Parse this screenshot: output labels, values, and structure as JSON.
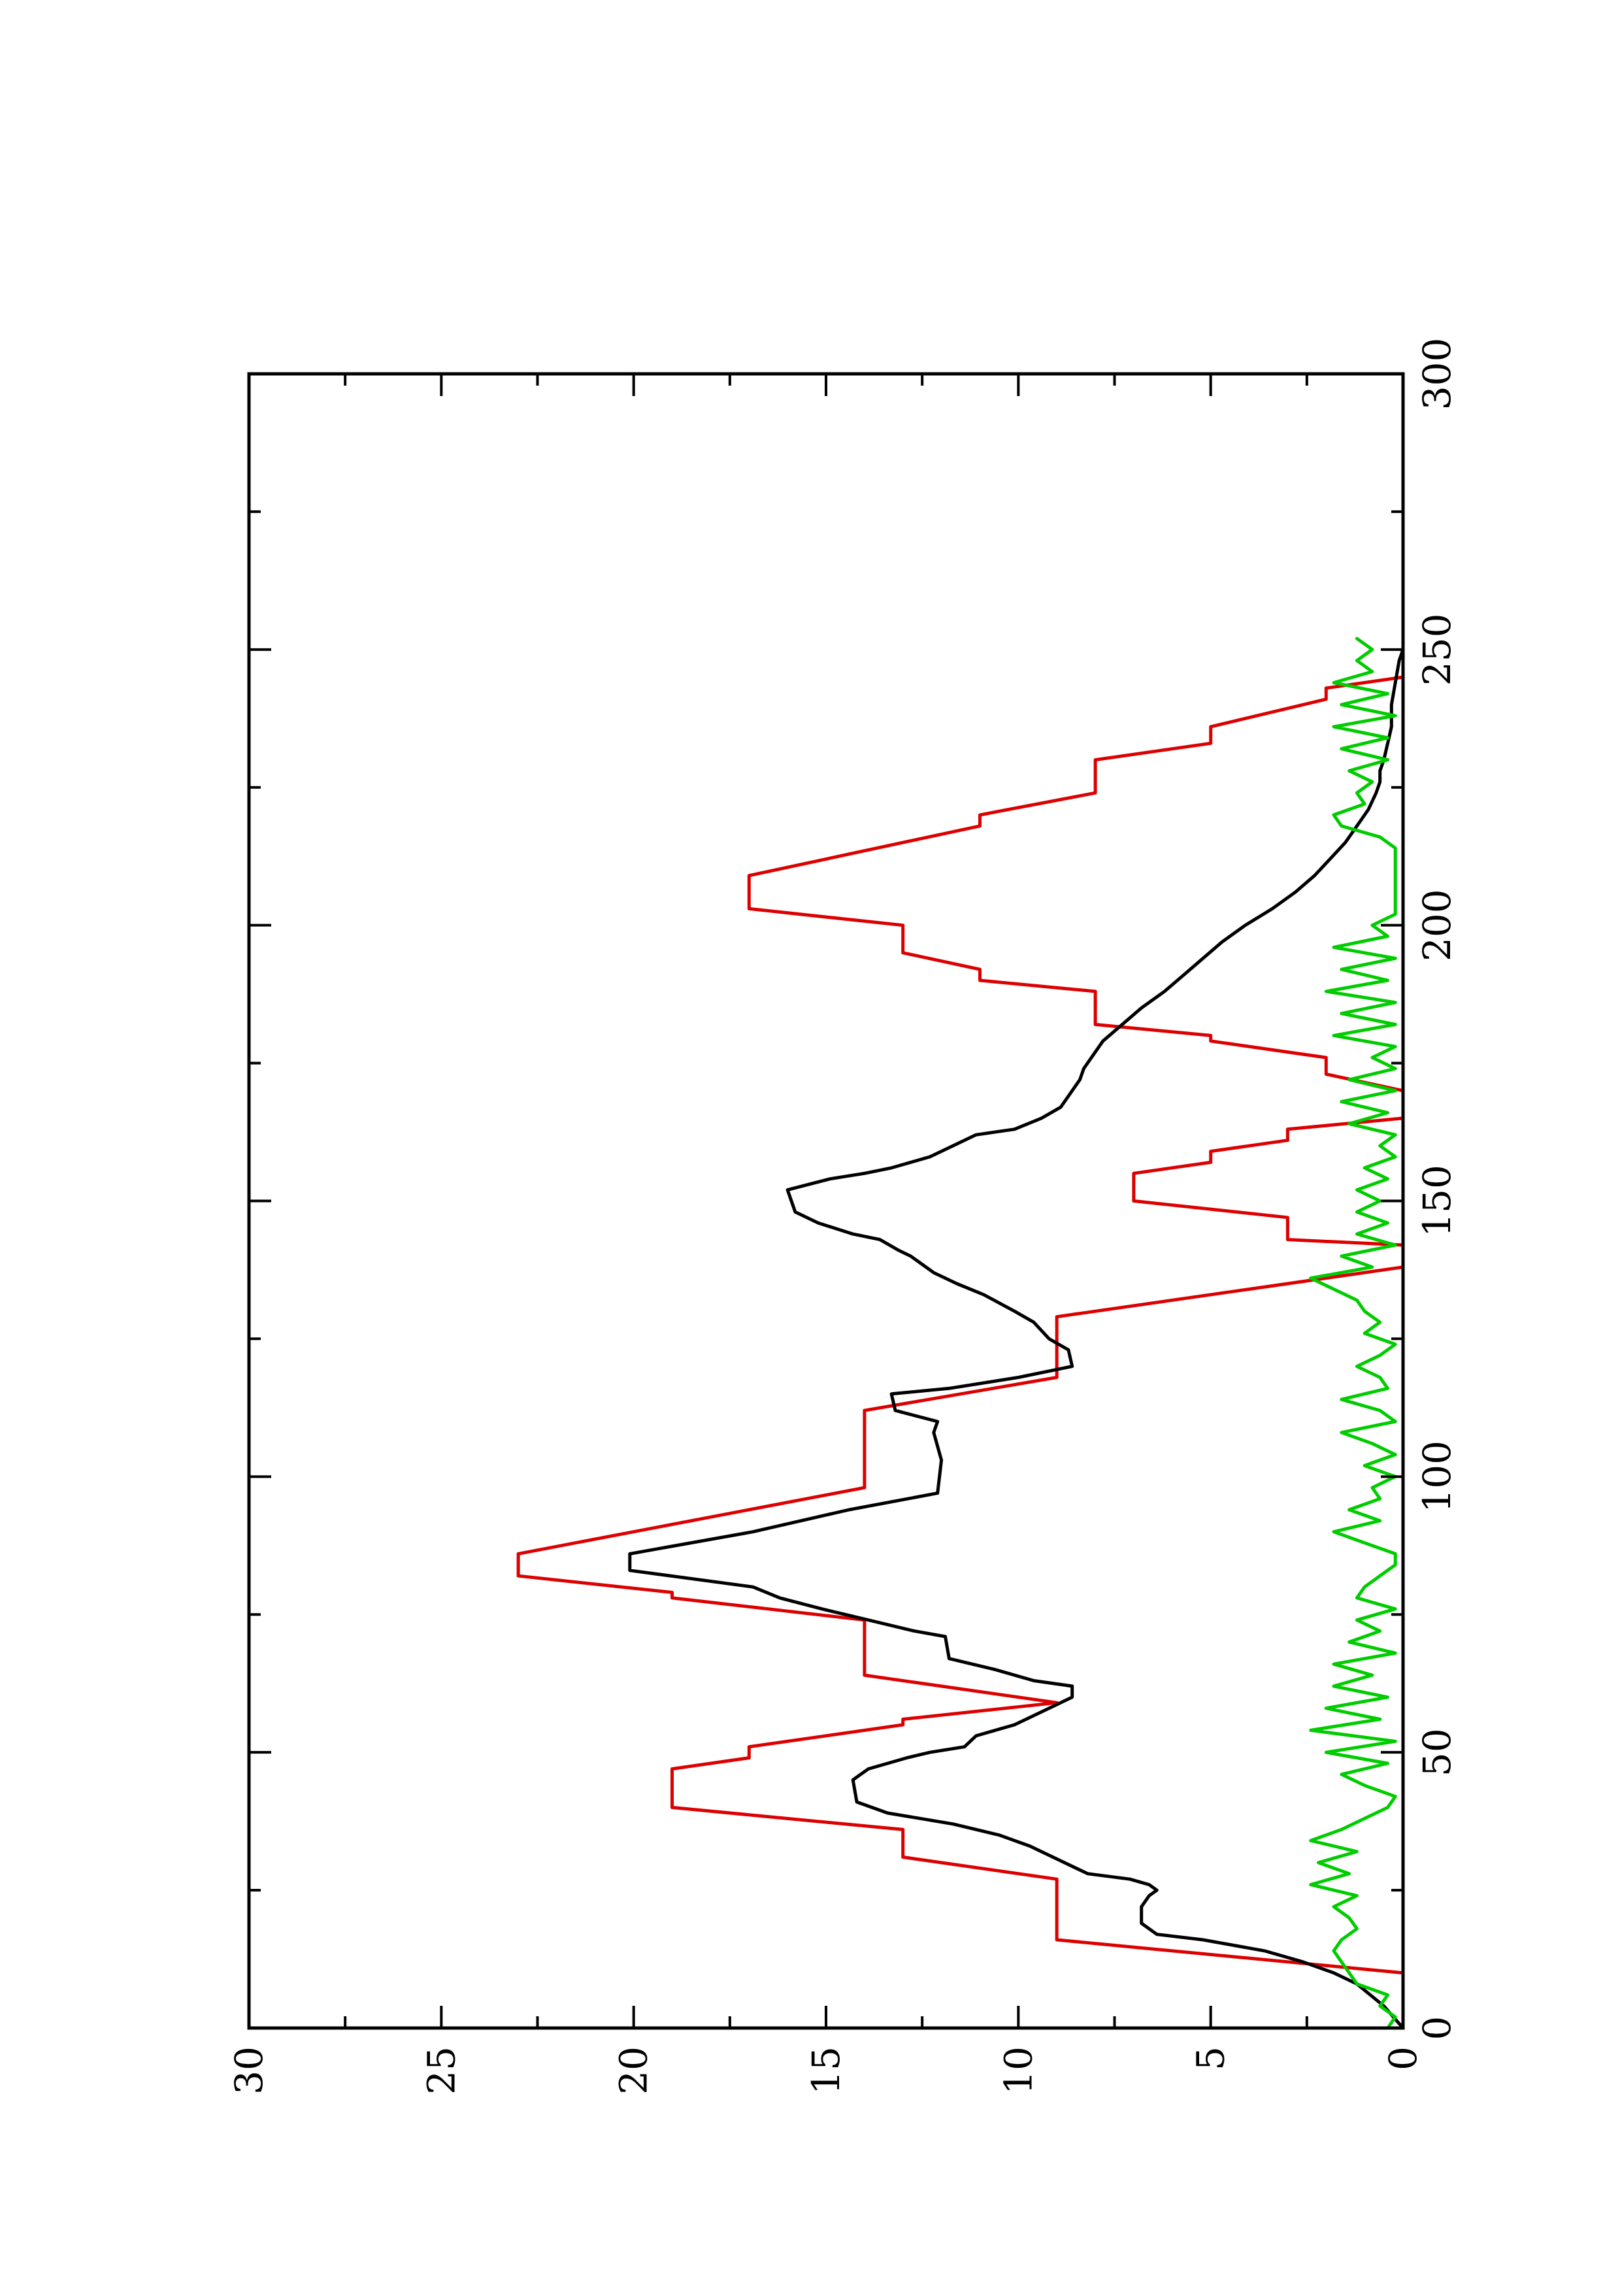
{
  "chart_data": {
    "type": "line",
    "title": "",
    "xlabel": "",
    "ylabel": "",
    "orientation": "rotated-90-counterclockwise",
    "xlim": [
      0,
      300
    ],
    "ylim": [
      0,
      30
    ],
    "x_ticks": [
      {
        "value": 0,
        "label": "0"
      },
      {
        "value": 50,
        "label": "50"
      },
      {
        "value": 100,
        "label": "100"
      },
      {
        "value": 150,
        "label": "150"
      },
      {
        "value": 200,
        "label": "200"
      },
      {
        "value": 250,
        "label": "250"
      },
      {
        "value": 300,
        "label": "300"
      }
    ],
    "x_minor_ticks": [
      25,
      75,
      125,
      175,
      225,
      275
    ],
    "y_ticks": [
      {
        "value": 0,
        "label": "0"
      },
      {
        "value": 5,
        "label": "5"
      },
      {
        "value": 10,
        "label": "10"
      },
      {
        "value": 15,
        "label": "15"
      },
      {
        "value": 20,
        "label": "20"
      },
      {
        "value": 25,
        "label": "25"
      },
      {
        "value": 30,
        "label": "30"
      }
    ],
    "y_minor_ticks": [
      2.5,
      7.5,
      12.5,
      17.5,
      22.5,
      27.5
    ],
    "grid": false,
    "legend": "none",
    "series": [
      {
        "color": "#dd0000",
        "points": [
          [
            0,
            0
          ],
          [
            10,
            0
          ],
          [
            16,
            9
          ],
          [
            27,
            9
          ],
          [
            31,
            13
          ],
          [
            36,
            13
          ],
          [
            40,
            19
          ],
          [
            47,
            19
          ],
          [
            49,
            17
          ],
          [
            51,
            17
          ],
          [
            55,
            13
          ],
          [
            56,
            13
          ],
          [
            59,
            9
          ],
          [
            64,
            14
          ],
          [
            74,
            14
          ],
          [
            78,
            19
          ],
          [
            79,
            19
          ],
          [
            82,
            23
          ],
          [
            86,
            23
          ],
          [
            98,
            14
          ],
          [
            112,
            14
          ],
          [
            118,
            9
          ],
          [
            129,
            9
          ],
          [
            138,
            0
          ],
          [
            142,
            0
          ],
          [
            143,
            3
          ],
          [
            147,
            3
          ],
          [
            150,
            7
          ],
          [
            155,
            7
          ],
          [
            157,
            5
          ],
          [
            159,
            5
          ],
          [
            161,
            3
          ],
          [
            163,
            3
          ],
          [
            165,
            0
          ],
          [
            170,
            0
          ],
          [
            173,
            2
          ],
          [
            176,
            2
          ],
          [
            179,
            5
          ],
          [
            180,
            5
          ],
          [
            182,
            8
          ],
          [
            188,
            8
          ],
          [
            190,
            11
          ],
          [
            192,
            11
          ],
          [
            195,
            13
          ],
          [
            200,
            13
          ],
          [
            203,
            17
          ],
          [
            209,
            17
          ],
          [
            218,
            11
          ],
          [
            220,
            11
          ],
          [
            224,
            8
          ],
          [
            230,
            8
          ],
          [
            233,
            5
          ],
          [
            236,
            5
          ],
          [
            241,
            2
          ],
          [
            243,
            2
          ],
          [
            245,
            0
          ],
          [
            252,
            0
          ]
        ]
      },
      {
        "color": "#000000",
        "points": [
          [
            0,
            0
          ],
          [
            4,
            0.5
          ],
          [
            8,
            1.2
          ],
          [
            10,
            1.8
          ],
          [
            12,
            2.6
          ],
          [
            14,
            3.6
          ],
          [
            16,
            5.2
          ],
          [
            17,
            6.4
          ],
          [
            19,
            6.8
          ],
          [
            22,
            6.8
          ],
          [
            24,
            6.6
          ],
          [
            25,
            6.4
          ],
          [
            26,
            6.6
          ],
          [
            27,
            7.1
          ],
          [
            28,
            8.2
          ],
          [
            31,
            9.1
          ],
          [
            33,
            9.7
          ],
          [
            35,
            10.5
          ],
          [
            37,
            11.7
          ],
          [
            39,
            13.4
          ],
          [
            41,
            14.2
          ],
          [
            45,
            14.3
          ],
          [
            47,
            13.9
          ],
          [
            49,
            12.9
          ],
          [
            50,
            12.3
          ],
          [
            51,
            11.4
          ],
          [
            53,
            11.1
          ],
          [
            55,
            10.1
          ],
          [
            57,
            9.5
          ],
          [
            60,
            8.6
          ],
          [
            62,
            8.6
          ],
          [
            63,
            9.6
          ],
          [
            65,
            10.6
          ],
          [
            67,
            11.8
          ],
          [
            71,
            11.9
          ],
          [
            72,
            12.7
          ],
          [
            74,
            13.9
          ],
          [
            76,
            15.1
          ],
          [
            78,
            16.2
          ],
          [
            80,
            16.9
          ],
          [
            83,
            20.1
          ],
          [
            86,
            20.1
          ],
          [
            90,
            16.9
          ],
          [
            94,
            14.4
          ],
          [
            97,
            12.1
          ],
          [
            103,
            12.0
          ],
          [
            108,
            12.2
          ],
          [
            110,
            12.1
          ],
          [
            112,
            13.2
          ],
          [
            115,
            13.3
          ],
          [
            116,
            11.8
          ],
          [
            118,
            10.0
          ],
          [
            120,
            8.6
          ],
          [
            123,
            8.7
          ],
          [
            125,
            9.2
          ],
          [
            128,
            9.6
          ],
          [
            130,
            10.1
          ],
          [
            133,
            10.9
          ],
          [
            135,
            11.6
          ],
          [
            137,
            12.2
          ],
          [
            139,
            12.6
          ],
          [
            140,
            12.8
          ],
          [
            141,
            13.1
          ],
          [
            143,
            13.6
          ],
          [
            144,
            14.3
          ],
          [
            146,
            15.2
          ],
          [
            148,
            15.8
          ],
          [
            150,
            15.9
          ],
          [
            152,
            16.0
          ],
          [
            154,
            14.9
          ],
          [
            155,
            14.0
          ],
          [
            156,
            13.3
          ],
          [
            158,
            12.3
          ],
          [
            160,
            11.7
          ],
          [
            162,
            11.1
          ],
          [
            163,
            10.1
          ],
          [
            165,
            9.4
          ],
          [
            167,
            8.9
          ],
          [
            170,
            8.6
          ],
          [
            172,
            8.4
          ],
          [
            174,
            8.3
          ],
          [
            176,
            8.1
          ],
          [
            179,
            7.8
          ],
          [
            182,
            7.3
          ],
          [
            185,
            6.8
          ],
          [
            188,
            6.2
          ],
          [
            191,
            5.7
          ],
          [
            194,
            5.2
          ],
          [
            197,
            4.7
          ],
          [
            200,
            4.1
          ],
          [
            203,
            3.4
          ],
          [
            206,
            2.8
          ],
          [
            209,
            2.3
          ],
          [
            212,
            1.9
          ],
          [
            215,
            1.5
          ],
          [
            218,
            1.2
          ],
          [
            221,
            0.9
          ],
          [
            224,
            0.7
          ],
          [
            226,
            0.6
          ],
          [
            228,
            0.6
          ],
          [
            230,
            0.5
          ],
          [
            233,
            0.4
          ],
          [
            236,
            0.3
          ],
          [
            240,
            0.3
          ],
          [
            244,
            0.2
          ],
          [
            248,
            0.1
          ],
          [
            250,
            0
          ],
          [
            252,
            0
          ]
        ]
      },
      {
        "color": "#00cc00",
        "points": [
          [
            0,
            0.4
          ],
          [
            2,
            0.2
          ],
          [
            4,
            0.6
          ],
          [
            6,
            0.4
          ],
          [
            8,
            1.2
          ],
          [
            10,
            1.4
          ],
          [
            12,
            1.6
          ],
          [
            14,
            1.8
          ],
          [
            16,
            1.6
          ],
          [
            18,
            1.2
          ],
          [
            20,
            1.4
          ],
          [
            22,
            1.8
          ],
          [
            24,
            1.2
          ],
          [
            26,
            2.4
          ],
          [
            28,
            1.4
          ],
          [
            30,
            2.2
          ],
          [
            32,
            1.2
          ],
          [
            34,
            2.4
          ],
          [
            36,
            1.6
          ],
          [
            38,
            1.0
          ],
          [
            40,
            0.4
          ],
          [
            42,
            0.2
          ],
          [
            44,
            1.0
          ],
          [
            46,
            1.6
          ],
          [
            48,
            0.4
          ],
          [
            50,
            2.0
          ],
          [
            52,
            0.2
          ],
          [
            54,
            2.4
          ],
          [
            56,
            0.6
          ],
          [
            58,
            2.0
          ],
          [
            60,
            0.4
          ],
          [
            62,
            1.8
          ],
          [
            64,
            0.8
          ],
          [
            66,
            1.8
          ],
          [
            68,
            0.2
          ],
          [
            70,
            1.4
          ],
          [
            72,
            0.6
          ],
          [
            74,
            1.2
          ],
          [
            76,
            0.2
          ],
          [
            78,
            1.2
          ],
          [
            80,
            1.0
          ],
          [
            82,
            0.6
          ],
          [
            84,
            0.2
          ],
          [
            86,
            0.2
          ],
          [
            88,
            1.0
          ],
          [
            90,
            1.8
          ],
          [
            92,
            0.6
          ],
          [
            94,
            1.4
          ],
          [
            96,
            0.6
          ],
          [
            98,
            0.8
          ],
          [
            100,
            0.2
          ],
          [
            102,
            1.0
          ],
          [
            104,
            0.2
          ],
          [
            106,
            0.8
          ],
          [
            108,
            1.6
          ],
          [
            110,
            0.2
          ],
          [
            112,
            0.6
          ],
          [
            114,
            1.6
          ],
          [
            116,
            0.4
          ],
          [
            118,
            0.6
          ],
          [
            120,
            1.2
          ],
          [
            122,
            0.6
          ],
          [
            124,
            0.2
          ],
          [
            126,
            1.0
          ],
          [
            128,
            0.6
          ],
          [
            130,
            1.0
          ],
          [
            132,
            1.2
          ],
          [
            134,
            1.8
          ],
          [
            136,
            2.4
          ],
          [
            138,
            0.8
          ],
          [
            140,
            1.6
          ],
          [
            142,
            0.2
          ],
          [
            144,
            1.2
          ],
          [
            146,
            0.4
          ],
          [
            148,
            1.2
          ],
          [
            150,
            0.6
          ],
          [
            152,
            1.2
          ],
          [
            154,
            0.4
          ],
          [
            156,
            1.0
          ],
          [
            158,
            0.2
          ],
          [
            160,
            0.6
          ],
          [
            162,
            0.2
          ],
          [
            164,
            1.4
          ],
          [
            166,
            0.4
          ],
          [
            168,
            1.6
          ],
          [
            170,
            0.2
          ],
          [
            172,
            1.4
          ],
          [
            174,
            0.2
          ],
          [
            176,
            0.8
          ],
          [
            178,
            0.2
          ],
          [
            180,
            1.8
          ],
          [
            182,
            0.2
          ],
          [
            184,
            1.6
          ],
          [
            186,
            0.2
          ],
          [
            188,
            2.0
          ],
          [
            190,
            0.4
          ],
          [
            192,
            1.6
          ],
          [
            194,
            0.2
          ],
          [
            196,
            1.8
          ],
          [
            198,
            0.4
          ],
          [
            200,
            0.8
          ],
          [
            202,
            0.2
          ],
          [
            206,
            0.2
          ],
          [
            210,
            0.2
          ],
          [
            214,
            0.2
          ],
          [
            216,
            0.6
          ],
          [
            218,
            1.6
          ],
          [
            220,
            1.8
          ],
          [
            222,
            1.0
          ],
          [
            224,
            1.2
          ],
          [
            226,
            0.8
          ],
          [
            228,
            1.4
          ],
          [
            230,
            0.4
          ],
          [
            232,
            1.6
          ],
          [
            234,
            0.4
          ],
          [
            236,
            1.8
          ],
          [
            238,
            0.2
          ],
          [
            240,
            1.6
          ],
          [
            242,
            0.4
          ],
          [
            244,
            1.8
          ],
          [
            246,
            0.8
          ],
          [
            248,
            1.2
          ],
          [
            250,
            0.8
          ],
          [
            252,
            1.2
          ]
        ]
      }
    ]
  }
}
